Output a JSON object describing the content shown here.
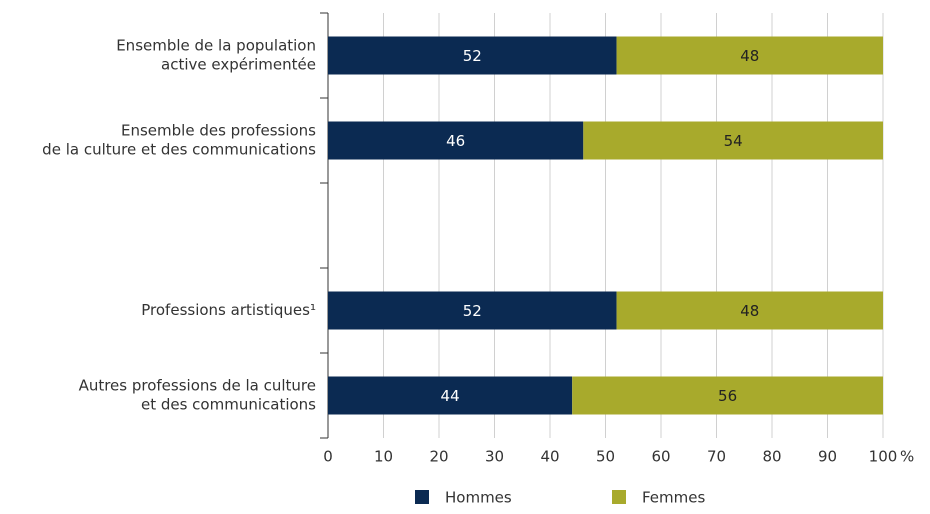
{
  "chart_data": {
    "type": "stacked_barh",
    "categories": [
      [
        "Ensemble de la population",
        "active expérimentée"
      ],
      [
        "Ensemble des professions",
        "de la culture et des communications"
      ],
      null,
      [
        "Professions artistiques¹"
      ],
      [
        "Autres professions de la culture",
        "et des communications"
      ]
    ],
    "series": [
      {
        "name": "Hommes",
        "color": "#0b2a52",
        "values": [
          52,
          46,
          null,
          52,
          44
        ]
      },
      {
        "name": "Femmes",
        "color": "#a8aa2c",
        "values": [
          48,
          54,
          null,
          48,
          56
        ]
      }
    ],
    "xlim": [
      0,
      100
    ],
    "xticks": [
      0,
      10,
      20,
      30,
      40,
      50,
      60,
      70,
      80,
      90,
      100
    ],
    "x_unit": "%",
    "grid": true,
    "legend": "bottom"
  }
}
